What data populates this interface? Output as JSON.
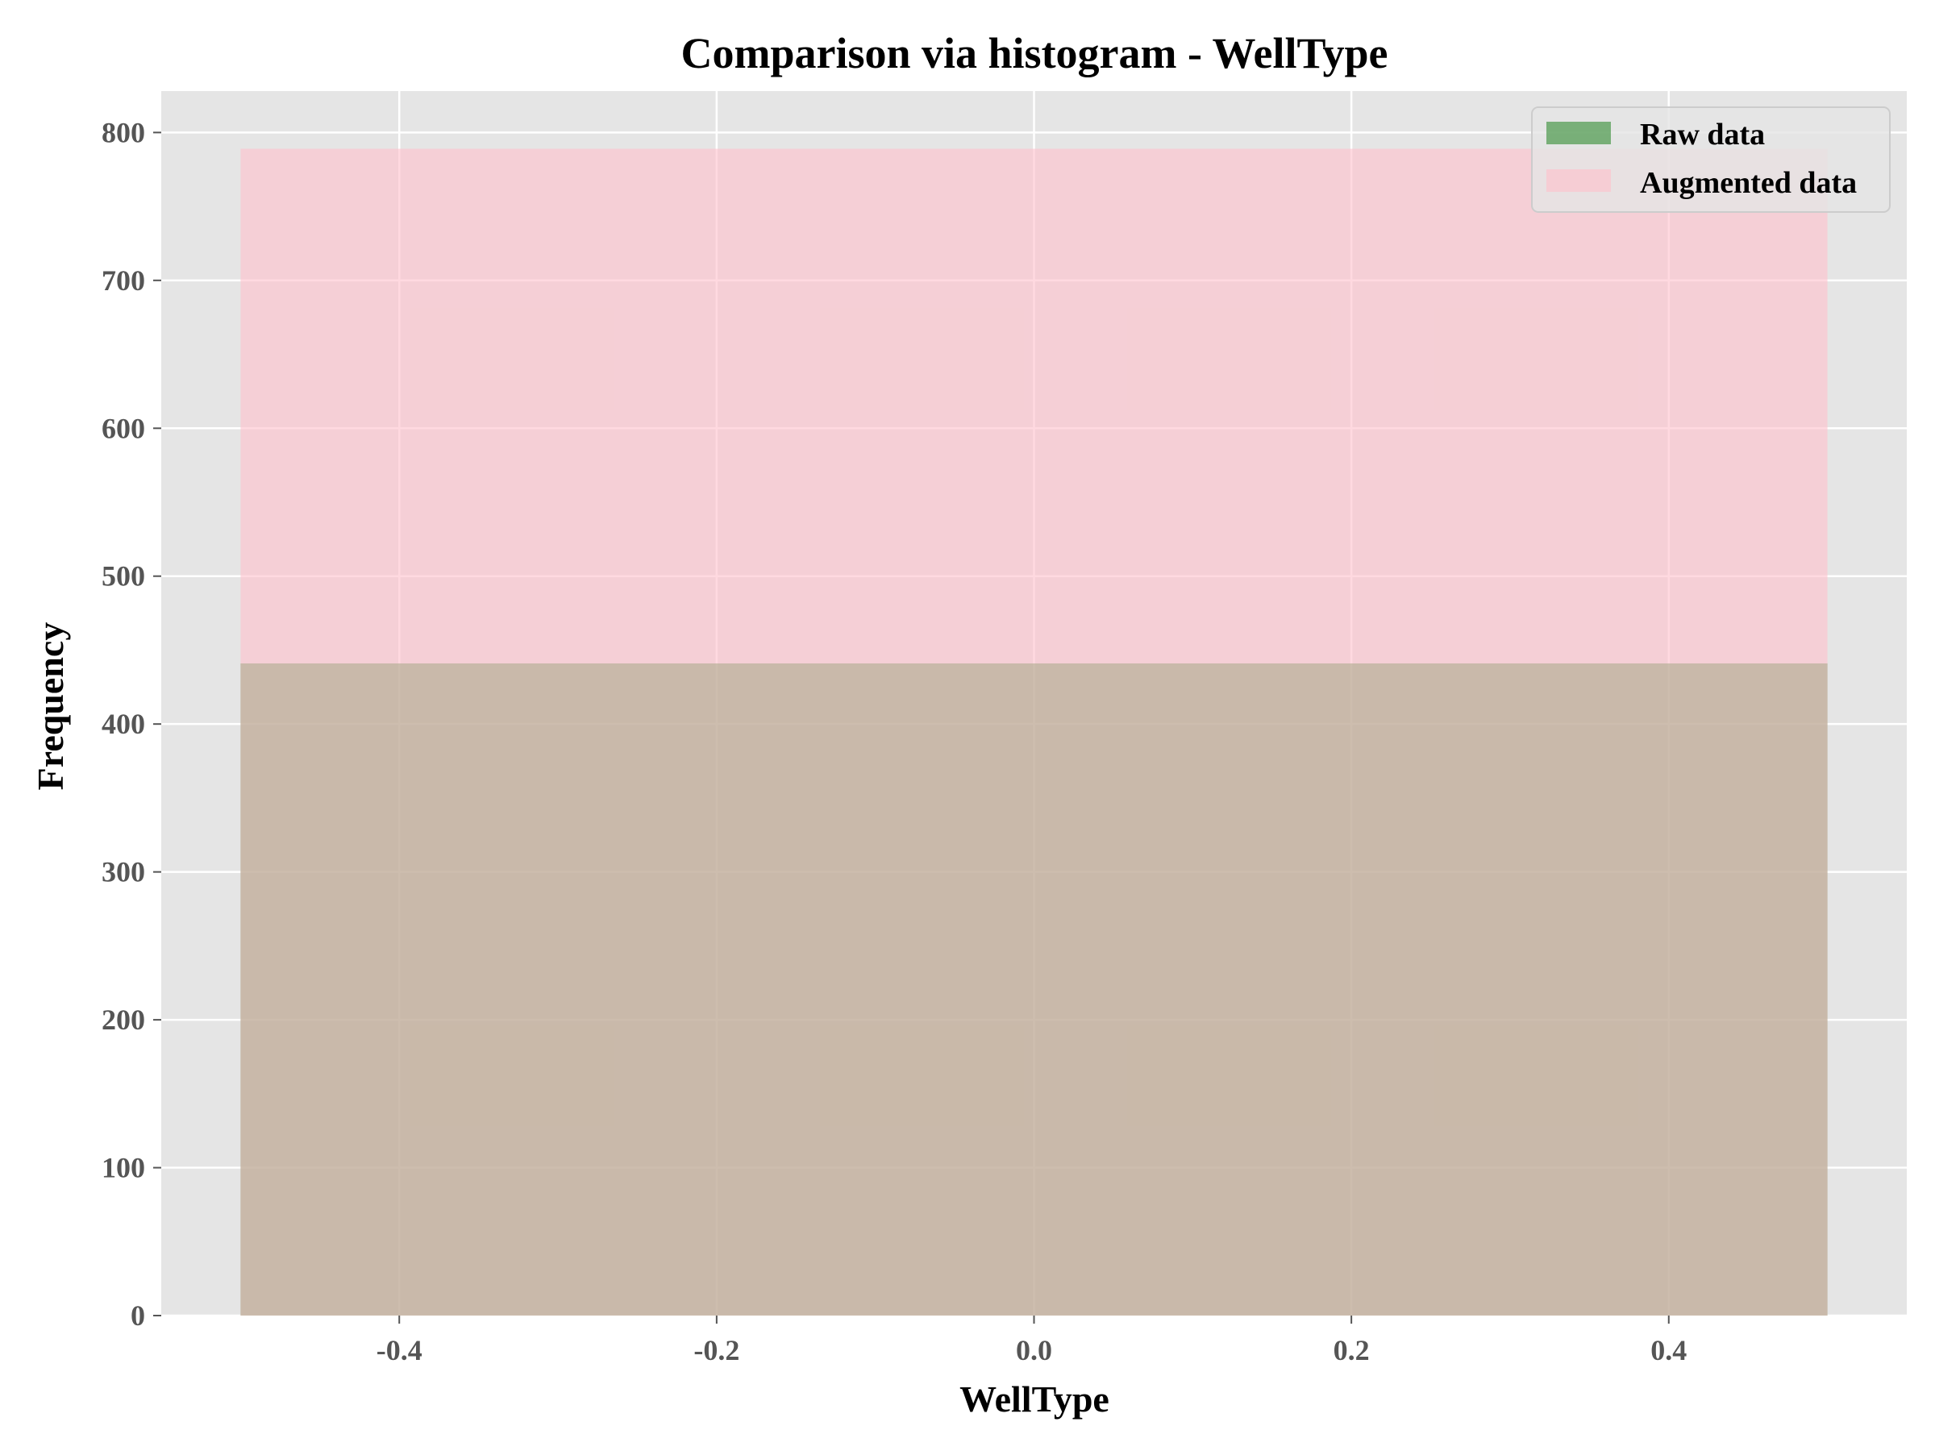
{
  "chart_data": {
    "type": "bar",
    "title": "Comparison via histogram - WellType",
    "xlabel": "WellType",
    "ylabel": "Frequency",
    "xlim": [
      -0.55,
      0.55
    ],
    "ylim": [
      0,
      828
    ],
    "xticks": [
      -0.4,
      -0.2,
      0.0,
      0.2,
      0.4
    ],
    "xtick_labels": [
      "-0.4",
      "-0.2",
      "0.0",
      "0.2",
      "0.4"
    ],
    "yticks": [
      0,
      100,
      200,
      300,
      400,
      500,
      600,
      700,
      800
    ],
    "ytick_labels": [
      "0",
      "100",
      "200",
      "300",
      "400",
      "500",
      "600",
      "700",
      "800"
    ],
    "grid": true,
    "legend_position": "top-right",
    "bin_edges": [
      -0.5,
      0.5
    ],
    "series": [
      {
        "name": "Raw data",
        "values": [
          441
        ],
        "color": "#2e8b2e",
        "opacity": 0.6
      },
      {
        "name": "Augmented data",
        "values": [
          789
        ],
        "color": "#ffc0cb",
        "opacity": 0.6
      }
    ],
    "background_color": "#e5e5e5"
  }
}
